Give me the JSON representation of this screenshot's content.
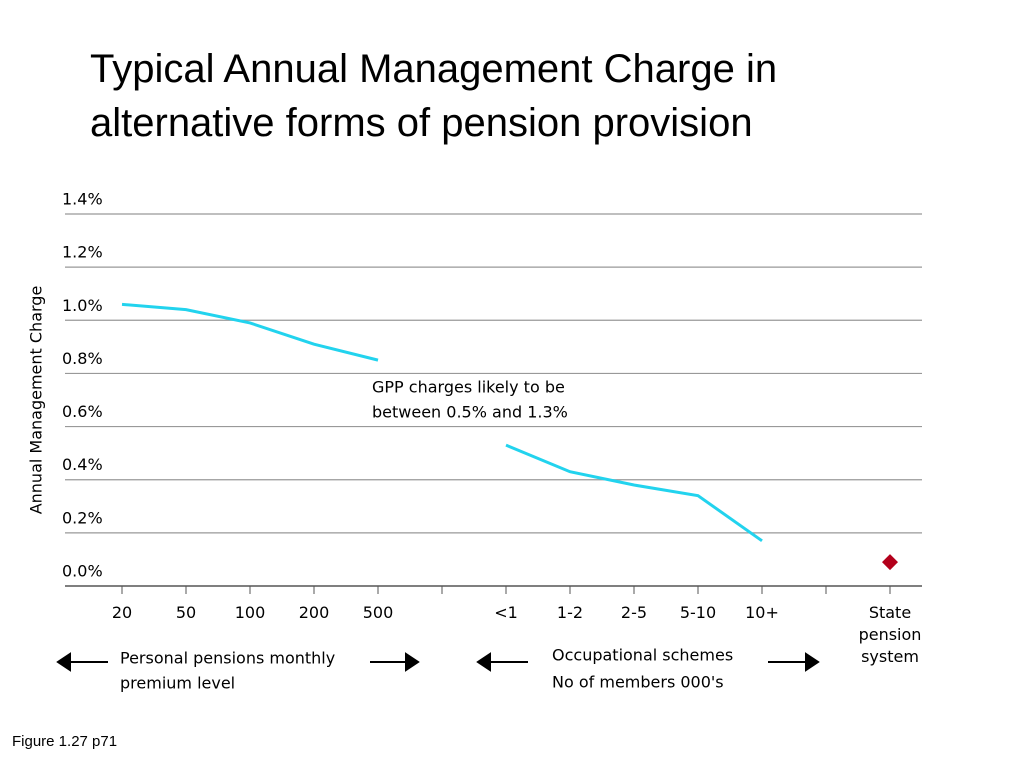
{
  "title": [
    "Typical Annual Management Charge in",
    "alternative forms of pension provision"
  ],
  "chart_data": {
    "type": "line",
    "y_label": "Annual Management Charge",
    "categories": [
      "20",
      "50",
      "100",
      "200",
      "500",
      null,
      "<1",
      "1-2",
      "2-5",
      "5-10",
      "10+",
      null,
      "State pension system"
    ],
    "series": [
      {
        "style": "line",
        "color": "#22d3ee",
        "values": [
          1.06,
          1.04,
          0.99,
          0.91,
          0.85,
          null,
          null,
          null,
          null,
          null,
          null,
          null,
          null
        ]
      },
      {
        "style": "line",
        "color": "#22d3ee",
        "values": [
          null,
          null,
          null,
          null,
          null,
          null,
          0.53,
          0.43,
          0.38,
          0.34,
          0.17,
          null,
          null
        ]
      },
      {
        "style": "marker",
        "color": "#b3001b",
        "values": [
          null,
          null,
          null,
          null,
          null,
          null,
          null,
          null,
          null,
          null,
          null,
          null,
          0.09
        ]
      }
    ],
    "ylim": [
      0,
      1.4
    ],
    "yticks": [
      {
        "value": 0,
        "label": "0.0%"
      },
      {
        "value": 0.2,
        "label": "0.2%"
      },
      {
        "value": 0.4,
        "label": "0.4%"
      },
      {
        "value": 0.6,
        "label": "0.6%"
      },
      {
        "value": 0.8,
        "label": "0.8%"
      },
      {
        "value": 1.0,
        "label": "1.0%"
      },
      {
        "value": 1.2,
        "label": "1.2%"
      },
      {
        "value": 1.4,
        "label": "1.4%"
      }
    ],
    "grid": true,
    "annotation": [
      "GPP charges likely to be",
      "between 0.5% and 1.3%"
    ],
    "group_labels": [
      [
        "Personal pensions monthly",
        "premium level"
      ],
      [
        "Occupational schemes",
        "No of members 000's"
      ]
    ]
  },
  "footer": "Figure 1.27 p71"
}
